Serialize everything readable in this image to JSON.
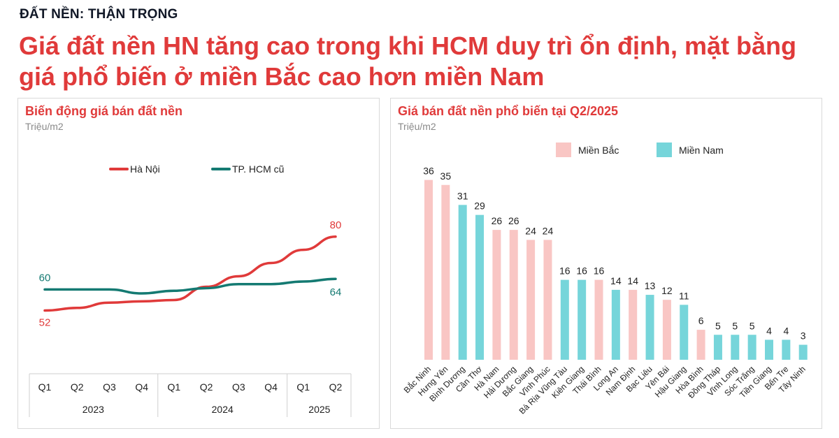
{
  "eyebrow": "ĐẤT NỀN: THẬN TRỌNG",
  "headline": "Giá đất nền HN tăng cao trong khi HCM duy trì ổn định, mặt bằng giá phổ biến ở miền Bắc cao hơn miền Nam",
  "colors": {
    "red": "#e03a3a",
    "teal": "#147a72",
    "bar_north": "#f9c6c4",
    "bar_south": "#76d5da"
  },
  "left_panel": {
    "title": "Biến động giá bán đất nền",
    "unit": "Triệu/m2"
  },
  "right_panel": {
    "title": "Giá bán đất nền phổ biến tại Q2/2025",
    "unit": "Triệu/m2"
  },
  "chart_data": [
    {
      "type": "line",
      "title": "Biến động giá bán đất nền",
      "ylabel": "Triệu/m2",
      "x": [
        "Q1",
        "Q2",
        "Q3",
        "Q4",
        "Q1",
        "Q2",
        "Q3",
        "Q4",
        "Q1",
        "Q2"
      ],
      "x_groups": [
        {
          "label": "2023",
          "count": 4
        },
        {
          "label": "2024",
          "count": 4
        },
        {
          "label": "2025",
          "count": 2
        }
      ],
      "ylim": [
        45,
        90
      ],
      "legend_position": "top-center",
      "series": [
        {
          "name": "Hà Nội",
          "color": "#e03a3a",
          "values": [
            52,
            53,
            55,
            55.5,
            56,
            61,
            65,
            70,
            75,
            80
          ],
          "labels": {
            "first": "52",
            "last": "80"
          }
        },
        {
          "name": "TP. HCM cũ",
          "color": "#147a72",
          "values": [
            60,
            60,
            60,
            58.5,
            59.5,
            60.5,
            62,
            62,
            63,
            64
          ],
          "labels": {
            "first": "60",
            "last": "64"
          }
        }
      ]
    },
    {
      "type": "bar",
      "title": "Giá bán đất nền phổ biến tại Q2/2025",
      "ylabel": "Triệu/m2",
      "legend_position": "top-center",
      "legend": [
        {
          "key": "north",
          "name": "Miền Bắc",
          "color": "#f9c6c4"
        },
        {
          "key": "south",
          "name": "Miền Nam",
          "color": "#76d5da"
        }
      ],
      "categories": [
        "Bắc Ninh",
        "Hưng Yên",
        "Bình Dương",
        "Cần Thơ",
        "Hà Nam",
        "Hải Dương",
        "Bắc Giang",
        "Vĩnh Phúc",
        "Bà Rịa Vũng Tàu",
        "Kiên Giang",
        "Thái Bình",
        "Long An",
        "Nam Định",
        "Bạc Liêu",
        "Yên Bái",
        "Hậu Giang",
        "Hòa Bình",
        "Đồng Tháp",
        "Vĩnh Long",
        "Sóc Trăng",
        "Tiền Giang",
        "Bến Tre",
        "Tây Ninh"
      ],
      "values": [
        36,
        35,
        31,
        29,
        26,
        26,
        24,
        24,
        16,
        16,
        16,
        14,
        14,
        13,
        12,
        11,
        6,
        5,
        5,
        5,
        4,
        4,
        3
      ],
      "region": [
        "north",
        "north",
        "south",
        "south",
        "north",
        "north",
        "north",
        "north",
        "south",
        "south",
        "north",
        "south",
        "north",
        "south",
        "north",
        "south",
        "north",
        "south",
        "south",
        "south",
        "south",
        "south",
        "south"
      ],
      "ylim": [
        0,
        40
      ]
    }
  ]
}
